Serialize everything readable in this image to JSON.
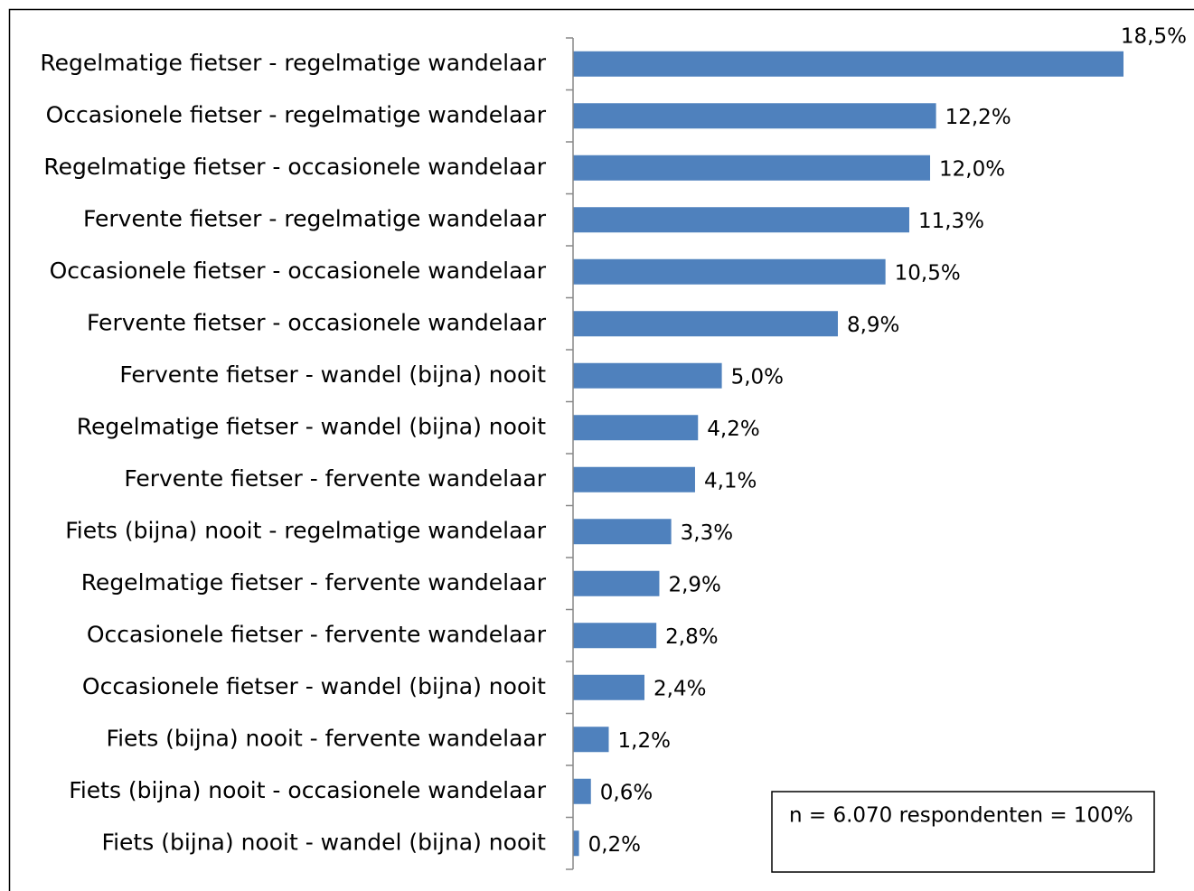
{
  "chart_data": {
    "type": "bar",
    "orientation": "horizontal",
    "categories": [
      "Regelmatige fietser - regelmatige wandelaar",
      "Occasionele fietser - regelmatige wandelaar",
      "Regelmatige fietser - occasionele wandelaar",
      "Fervente fietser - regelmatige wandelaar",
      "Occasionele fietser - occasionele  wandelaar",
      "Fervente fietser - occasionele wandelaar",
      "Fervente fietser - wandel (bijna) nooit",
      "Regelmatige fietser - wandel (bijna) nooit",
      "Fervente fietser - fervente wandelaar",
      "Fiets (bijna) nooit - regelmatige wandelaar",
      "Regelmatige fietser - fervente wandelaar",
      "Occasionele fietser - fervente wandelaar",
      "Occasionele fietser - wandel (bijna) nooit",
      "Fiets (bijna) nooit - fervente wandelaar",
      "Fiets (bijna) nooit - occasionele wandelaar",
      "Fiets (bijna) nooit - wandel (bijna) nooit"
    ],
    "values": [
      18.5,
      12.2,
      12.0,
      11.3,
      10.5,
      8.9,
      5.0,
      4.2,
      4.1,
      3.3,
      2.9,
      2.8,
      2.4,
      1.2,
      0.6,
      0.2
    ],
    "value_labels": [
      "18,5%",
      "12,2%",
      "12,0%",
      "11,3%",
      "10,5%",
      "8,9%",
      "5,0%",
      "4,2%",
      "4,1%",
      "3,3%",
      "2,9%",
      "2,8%",
      "2,4%",
      "1,2%",
      "0,6%",
      "0,2%"
    ],
    "color": "#4f81bd",
    "annotation": "n = 6.070 respondenten = 100%"
  }
}
